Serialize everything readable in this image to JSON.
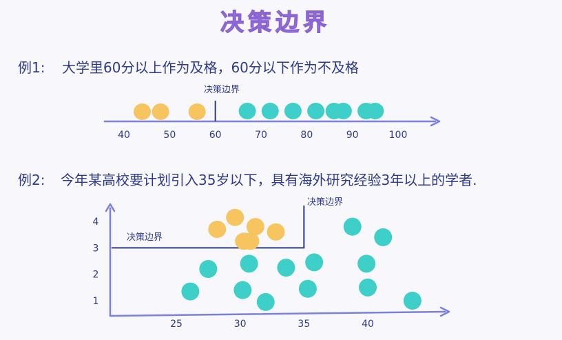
{
  "title": "决策边界",
  "colors": {
    "title": "#b28be8",
    "text": "#2d3a8c",
    "axis": "#7b7fe0",
    "yellow": "#f7c560",
    "teal": "#3fcfc9",
    "boundary": "#2d3a8c"
  },
  "example1": {
    "label": "例1:",
    "description": "大学里60分以上作为及格，60分以下作为不及格",
    "boundary_label": "决策边界",
    "ticks": [
      "40",
      "50",
      "60",
      "70",
      "80",
      "90",
      "100"
    ],
    "boundary_value": 60,
    "fail_points": [
      44,
      48,
      56
    ],
    "pass_points": [
      67,
      72,
      77,
      82,
      86,
      88,
      93,
      95
    ]
  },
  "example2": {
    "label": "例2:",
    "description": "今年某高校要计划引入35岁以下，具有海外研究经验3年以上的学者.",
    "boundary_label_top": "决策边界",
    "boundary_label_left": "决策边界",
    "x_ticks": [
      "25",
      "30",
      "35",
      "40"
    ],
    "y_ticks": [
      "1",
      "2",
      "3",
      "4"
    ],
    "boundary": {
      "age": 35,
      "years": 3
    },
    "accepted_points": [
      {
        "age": 28.2,
        "years": 3.7
      },
      {
        "age": 29.6,
        "years": 4.15
      },
      {
        "age": 30.3,
        "years": 3.25
      },
      {
        "age": 31.2,
        "years": 3.8
      },
      {
        "age": 30.8,
        "years": 3.25
      },
      {
        "age": 32.8,
        "years": 3.6
      }
    ],
    "rejected_points": [
      {
        "age": 38.8,
        "years": 3.8
      },
      {
        "age": 41.2,
        "years": 3.4
      },
      {
        "age": 27.5,
        "years": 2.2
      },
      {
        "age": 26.1,
        "years": 1.35
      },
      {
        "age": 30.7,
        "years": 2.4
      },
      {
        "age": 30.2,
        "years": 1.4
      },
      {
        "age": 32.0,
        "years": 0.95
      },
      {
        "age": 33.6,
        "years": 2.25
      },
      {
        "age": 35.8,
        "years": 2.45
      },
      {
        "age": 35.3,
        "years": 1.45
      },
      {
        "age": 39.9,
        "years": 2.4
      },
      {
        "age": 40.0,
        "years": 1.5
      },
      {
        "age": 43.5,
        "years": 1.0
      }
    ]
  }
}
